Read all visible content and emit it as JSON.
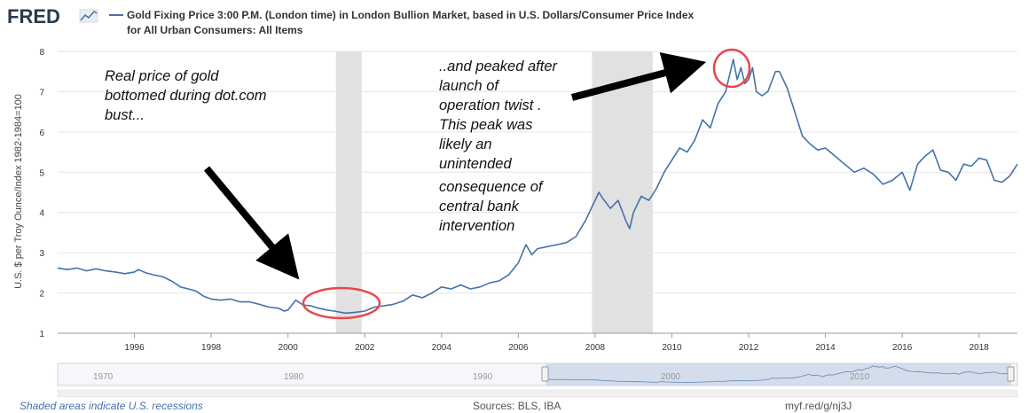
{
  "logo": {
    "text": "FRED"
  },
  "legend": {
    "line1": "Gold Fixing Price 3:00 P.M. (London time) in London Bullion Market, based in U.S. Dollars/Consumer Price Index",
    "line2": "for All Urban Consumers: All Items"
  },
  "annotations": {
    "left": [
      "Real price of gold",
      "bottomed during dot.com",
      "bust..."
    ],
    "right": [
      "..and peaked after",
      "launch of",
      "operation twist .",
      "This peak was",
      "likely an",
      "unintended",
      "consequence of",
      "central bank",
      "intervention"
    ]
  },
  "footer": {
    "note": "Shaded areas indicate U.S. recessions",
    "sources": "Sources: BLS, IBA",
    "link": "myf.red/g/nj3J"
  },
  "colors": {
    "line": "#4572a7",
    "recession": "#e1e1e1",
    "grid": "#e6e6e6",
    "arrow": "#000000",
    "circle": "#e8474a"
  },
  "navigator": {
    "labels": [
      "1970",
      "1980",
      "1990",
      "2000",
      "2010"
    ]
  },
  "chart_data": {
    "type": "line",
    "title": "",
    "xlabel": "",
    "ylabel": "U.S. $ per Troy Ounce/Index 1982-1984=100",
    "xlim": [
      1994.0,
      2019.0
    ],
    "ylim": [
      1,
      8
    ],
    "yticks": [
      1,
      2,
      3,
      4,
      5,
      6,
      7,
      8
    ],
    "xticks": [
      1996,
      1998,
      2000,
      2002,
      2004,
      2006,
      2008,
      2010,
      2012,
      2014,
      2016,
      2018
    ],
    "grid": true,
    "recessions": [
      [
        2001.25,
        2001.92
      ],
      [
        2007.92,
        2009.5
      ]
    ],
    "series": [
      {
        "name": "Gold Fixing Price 3:00 P.M. (London time) in London Bullion Market, based in U.S. Dollars/Consumer Price Index for All Urban Consumers: All Items",
        "x": [
          1994.0,
          1994.25,
          1994.5,
          1994.75,
          1995.0,
          1995.25,
          1995.5,
          1995.75,
          1996.0,
          1996.1,
          1996.3,
          1996.5,
          1996.75,
          1997.0,
          1997.2,
          1997.4,
          1997.6,
          1997.8,
          1998.0,
          1998.25,
          1998.5,
          1998.75,
          1999.0,
          1999.25,
          1999.5,
          1999.75,
          1999.9,
          2000.0,
          2000.2,
          2000.4,
          2000.6,
          2000.8,
          2001.0,
          2001.2,
          2001.5,
          2001.75,
          2002.0,
          2002.25,
          2002.5,
          2002.75,
          2003.0,
          2003.25,
          2003.5,
          2003.75,
          2004.0,
          2004.25,
          2004.5,
          2004.75,
          2005.0,
          2005.25,
          2005.5,
          2005.75,
          2006.0,
          2006.2,
          2006.35,
          2006.5,
          2006.75,
          2007.0,
          2007.25,
          2007.5,
          2007.75,
          2008.0,
          2008.1,
          2008.2,
          2008.4,
          2008.6,
          2008.8,
          2008.9,
          2009.0,
          2009.2,
          2009.4,
          2009.6,
          2009.8,
          2010.0,
          2010.2,
          2010.4,
          2010.6,
          2010.8,
          2011.0,
          2011.2,
          2011.4,
          2011.6,
          2011.7,
          2011.8,
          2011.9,
          2012.0,
          2012.1,
          2012.2,
          2012.35,
          2012.5,
          2012.7,
          2012.8,
          2013.0,
          2013.2,
          2013.4,
          2013.6,
          2013.8,
          2014.0,
          2014.25,
          2014.5,
          2014.75,
          2015.0,
          2015.25,
          2015.5,
          2015.75,
          2016.0,
          2016.2,
          2016.4,
          2016.6,
          2016.8,
          2017.0,
          2017.2,
          2017.4,
          2017.6,
          2017.8,
          2018.0,
          2018.2,
          2018.4,
          2018.6,
          2018.8,
          2019.0
        ],
        "y": [
          2.62,
          2.58,
          2.62,
          2.55,
          2.6,
          2.55,
          2.52,
          2.48,
          2.52,
          2.58,
          2.5,
          2.45,
          2.4,
          2.28,
          2.15,
          2.1,
          2.05,
          1.92,
          1.85,
          1.82,
          1.85,
          1.78,
          1.78,
          1.72,
          1.65,
          1.62,
          1.55,
          1.58,
          1.82,
          1.7,
          1.68,
          1.62,
          1.58,
          1.55,
          1.5,
          1.52,
          1.55,
          1.65,
          1.68,
          1.72,
          1.8,
          1.95,
          1.88,
          2.0,
          2.15,
          2.1,
          2.2,
          2.1,
          2.15,
          2.25,
          2.3,
          2.45,
          2.75,
          3.2,
          2.95,
          3.1,
          3.15,
          3.2,
          3.25,
          3.4,
          3.8,
          4.3,
          4.5,
          4.35,
          4.1,
          4.3,
          3.8,
          3.6,
          4.0,
          4.4,
          4.3,
          4.6,
          5.0,
          5.3,
          5.6,
          5.5,
          5.8,
          6.3,
          6.1,
          6.7,
          7.0,
          7.8,
          7.3,
          7.6,
          7.2,
          7.3,
          7.6,
          7.0,
          6.9,
          7.0,
          7.5,
          7.5,
          7.1,
          6.5,
          5.9,
          5.7,
          5.55,
          5.6,
          5.4,
          5.2,
          5.0,
          5.1,
          4.95,
          4.7,
          4.8,
          5.0,
          4.55,
          5.2,
          5.4,
          5.55,
          5.05,
          5.0,
          4.8,
          5.2,
          5.15,
          5.35,
          5.3,
          4.8,
          4.75,
          4.9,
          5.2
        ]
      }
    ]
  }
}
